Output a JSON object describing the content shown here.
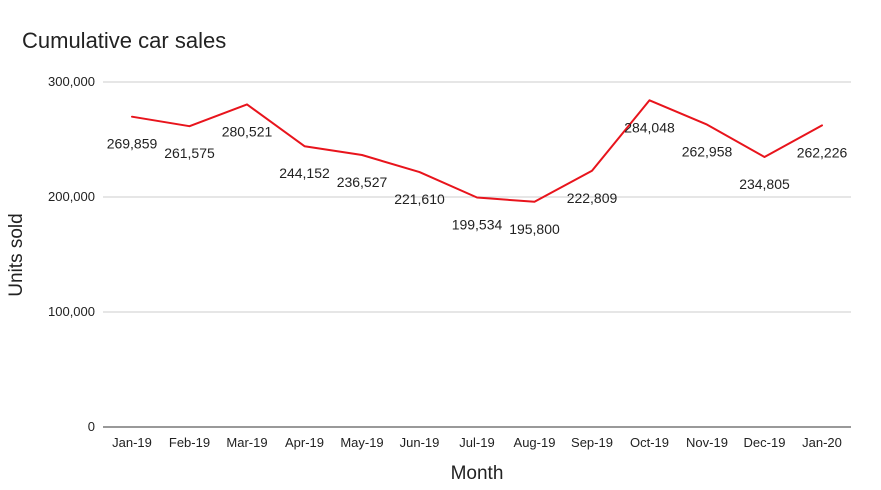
{
  "chart_data": {
    "type": "line",
    "title": "Cumulative car sales",
    "xlabel": "Month",
    "ylabel": "Units sold",
    "categories": [
      "Jan-19",
      "Feb-19",
      "Mar-19",
      "Apr-19",
      "May-19",
      "Jun-19",
      "Jul-19",
      "Aug-19",
      "Sep-19",
      "Oct-19",
      "Nov-19",
      "Dec-19",
      "Jan-20"
    ],
    "series": [
      {
        "values": [
          269859,
          261575,
          280521,
          244152,
          236527,
          221610,
          199534,
          195800,
          222809,
          284048,
          262958,
          234805,
          262226
        ],
        "color": "#e8141c"
      }
    ],
    "data_labels": [
      "269,859",
      "261,575",
      "280,521",
      "244,152",
      "236,527",
      "221,610",
      "199,534",
      "195,800",
      "222,809",
      "284,048",
      "262,958",
      "234,805",
      "262,226"
    ],
    "y_ticks": [
      0,
      100000,
      200000,
      300000
    ],
    "y_tick_labels": [
      "0",
      "100,000",
      "200,000",
      "300,000"
    ],
    "ylim": [
      0,
      300000
    ],
    "grid": true,
    "legend": "none"
  }
}
